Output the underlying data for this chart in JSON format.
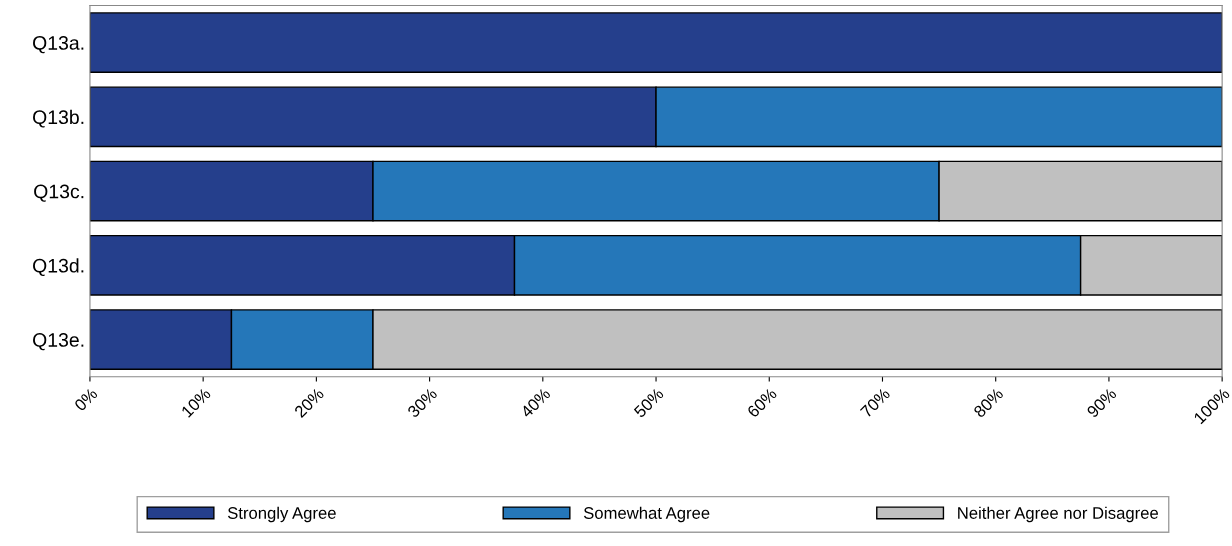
{
  "chart_data": {
    "type": "bar",
    "orientation": "horizontal",
    "stacked": true,
    "categories": [
      "Q13a.",
      "Q13b.",
      "Q13c.",
      "Q13d.",
      "Q13e."
    ],
    "series": [
      {
        "name": "Strongly Agree",
        "color": "#253f8c",
        "values": [
          100,
          50,
          25,
          37.5,
          12.5
        ]
      },
      {
        "name": "Somewhat Agree",
        "color": "#2577b9",
        "values": [
          null,
          50,
          50,
          50,
          12.5
        ]
      },
      {
        "name": "Neither Agree nor Disagree",
        "color": "#c0c0c0",
        "values": [
          null,
          null,
          25,
          12.5,
          75
        ]
      }
    ],
    "xlim": [
      0,
      100
    ],
    "xticks": [
      {
        "value": 0,
        "label": "0%"
      },
      {
        "value": 10,
        "label": "10%"
      },
      {
        "value": 20,
        "label": "20%"
      },
      {
        "value": 30,
        "label": "30%"
      },
      {
        "value": 40,
        "label": "40%"
      },
      {
        "value": 50,
        "label": "50%"
      },
      {
        "value": 60,
        "label": "60%"
      },
      {
        "value": 70,
        "label": "70%"
      },
      {
        "value": 80,
        "label": "80%"
      },
      {
        "value": 90,
        "label": "90%"
      },
      {
        "value": 100,
        "label": "100%"
      }
    ],
    "grid": false,
    "legend": "bottom"
  }
}
